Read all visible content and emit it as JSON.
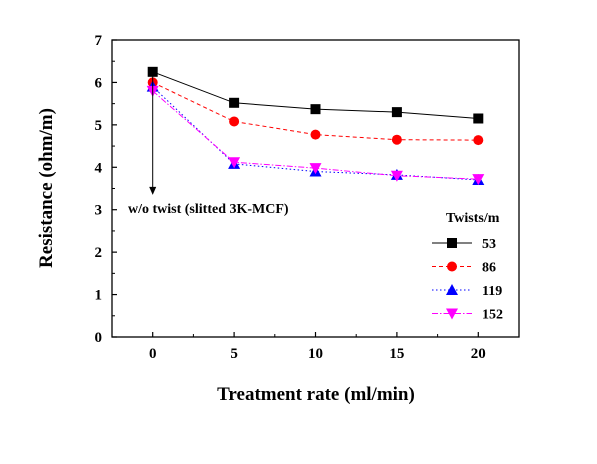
{
  "chart_data": {
    "type": "line",
    "xlabel": "Treatment rate (ml/min)",
    "ylabel": "Resistance (ohm/m)",
    "xlim": [
      -2.5,
      22.5
    ],
    "ylim": [
      0,
      7
    ],
    "xticks": [
      0,
      5,
      10,
      15,
      20
    ],
    "yticks": [
      0,
      1,
      2,
      3,
      4,
      5,
      6,
      7
    ],
    "x": [
      0,
      5,
      10,
      15,
      20
    ],
    "grid": false,
    "legend": {
      "title": "Twists/m",
      "position": "bottom-right"
    },
    "series": [
      {
        "name": "53",
        "values": [
          6.25,
          5.52,
          5.37,
          5.3,
          5.15
        ],
        "color": "#000000",
        "marker": "square",
        "dash": "solid"
      },
      {
        "name": "86",
        "values": [
          6.0,
          5.08,
          4.77,
          4.65,
          4.64
        ],
        "color": "#ff0000",
        "marker": "circle",
        "dash": "dash"
      },
      {
        "name": "119",
        "values": [
          5.9,
          4.08,
          3.9,
          3.82,
          3.7
        ],
        "color": "#0000ff",
        "marker": "triangle-up",
        "dash": "dot"
      },
      {
        "name": "152",
        "values": [
          5.8,
          4.12,
          3.98,
          3.8,
          3.72
        ],
        "color": "#ff00ff",
        "marker": "triangle-down",
        "dash": "dashdot"
      }
    ],
    "annotation": {
      "text": "w/o twist (slitted 3K-MCF)",
      "arrow_from_y": 6.25,
      "arrow_to_y": 3.35,
      "arrow_x": 0
    }
  }
}
